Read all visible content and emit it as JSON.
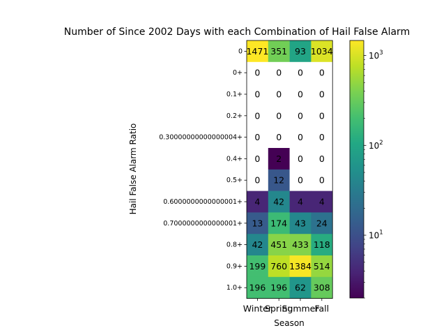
{
  "chart_data": {
    "type": "heatmap",
    "title": "Number of Since 2002 Days with each Combination of Hail False Alarm",
    "xlabel": "Season",
    "ylabel": "Hail False Alarm Ratio",
    "x_categories": [
      "Winter",
      "Spring",
      "Summer",
      "Fall"
    ],
    "y_categories": [
      "0",
      "0+",
      "0.1+",
      "0.2+",
      "0.30000000000000004+",
      "0.4+",
      "0.5+",
      "0.6000000000000001+",
      "0.7000000000000001+",
      "0.8+",
      "0.9+",
      "1.0+"
    ],
    "values": [
      [
        1471,
        351,
        93,
        1034
      ],
      [
        0,
        0,
        0,
        0
      ],
      [
        0,
        0,
        0,
        0
      ],
      [
        0,
        0,
        0,
        0
      ],
      [
        0,
        0,
        0,
        0
      ],
      [
        0,
        2,
        0,
        0
      ],
      [
        0,
        12,
        0,
        0
      ],
      [
        4,
        42,
        4,
        4
      ],
      [
        13,
        174,
        43,
        24
      ],
      [
        42,
        451,
        433,
        118
      ],
      [
        199,
        760,
        1384,
        514
      ],
      [
        196,
        196,
        62,
        308
      ]
    ],
    "colorbar": {
      "scale": "log",
      "colormap": "viridis",
      "vmin": 2,
      "vmax": 1471,
      "tick_labels": [
        "10^1",
        "10^2",
        "10^3"
      ],
      "tick_values": [
        10,
        100,
        1000
      ]
    },
    "zero_cell_color": "#ffffff"
  }
}
